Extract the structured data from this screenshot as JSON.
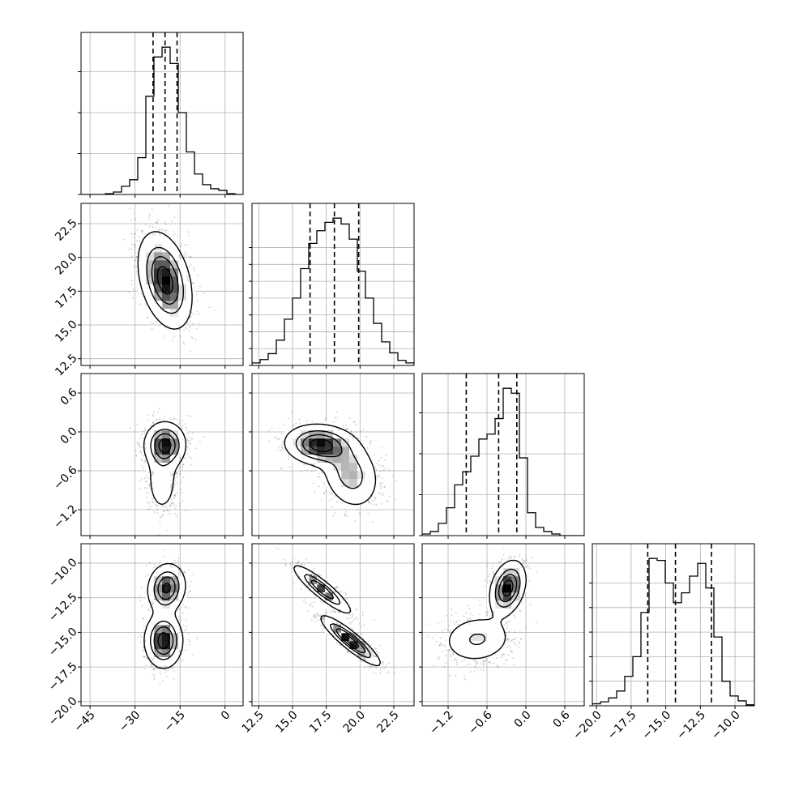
{
  "chart_data": {
    "type": "corner",
    "grid": true,
    "parameters": [
      {
        "range": [
          -48,
          6
        ],
        "ticks": [
          -45,
          -30,
          -15,
          0
        ],
        "tick_labels": [
          "−45",
          "−30",
          "−15",
          "0"
        ],
        "quantiles": [
          -24,
          -20,
          -16
        ],
        "hist_bins": [
          -48,
          -45.3,
          -42.6,
          -39.9,
          -37.2,
          -34.5,
          -31.8,
          -29.1,
          -26.4,
          -23.7,
          -21.0,
          -18.3,
          -15.6,
          -12.9,
          -10.2,
          -7.5,
          -4.8,
          -2.1,
          0.6,
          3.3,
          6.0
        ],
        "hist_counts": [
          0,
          0,
          0,
          1,
          3,
          10,
          18,
          45,
          120,
          168,
          180,
          160,
          100,
          52,
          25,
          12,
          7,
          5,
          1,
          0
        ],
        "y_ticks": [
          0,
          50,
          100,
          150
        ]
      },
      {
        "range": [
          12,
          24
        ],
        "ticks": [
          12.5,
          15.0,
          17.5,
          20.0,
          22.5
        ],
        "tick_labels": [
          "12.5",
          "15.0",
          "17.5",
          "20.0",
          "22.5"
        ],
        "quantiles": [
          16.3,
          18.1,
          19.9
        ],
        "hist_bins": [
          12.0,
          12.6,
          13.2,
          13.8,
          14.4,
          15.0,
          15.6,
          16.2,
          16.8,
          17.4,
          18.0,
          18.6,
          19.2,
          19.8,
          20.4,
          21.0,
          21.6,
          22.2,
          22.8,
          23.4,
          24.0
        ],
        "hist_counts": [
          3,
          7,
          14,
          30,
          55,
          80,
          115,
          145,
          160,
          170,
          175,
          168,
          150,
          112,
          80,
          50,
          28,
          15,
          6,
          3
        ],
        "y_ticks": [
          0,
          20,
          40,
          60,
          80,
          100,
          120,
          140
        ]
      },
      {
        "range": [
          -1.6,
          0.9
        ],
        "ticks": [
          -1.2,
          -0.6,
          0.0,
          0.6
        ],
        "tick_labels": [
          "−1.2",
          "−0.6",
          "0.0",
          "0.6"
        ],
        "quantiles": [
          -0.92,
          -0.42,
          -0.14
        ],
        "hist_bins": [
          -1.6,
          -1.475,
          -1.35,
          -1.225,
          -1.1,
          -0.975,
          -0.85,
          -0.725,
          -0.6,
          -0.475,
          -0.35,
          -0.225,
          -0.1,
          0.025,
          0.15,
          0.275,
          0.4,
          0.525,
          0.65,
          0.775,
          0.9
        ],
        "hist_counts": [
          2,
          5,
          15,
          34,
          62,
          78,
          97,
          118,
          124,
          143,
          180,
          174,
          95,
          28,
          10,
          5,
          2,
          0,
          0,
          0
        ],
        "y_ticks": [
          0,
          50,
          100,
          150
        ]
      },
      {
        "range": [
          -20.3,
          -8.6
        ],
        "ticks": [
          -20.0,
          -17.5,
          -15.0,
          -12.5,
          -10.0
        ],
        "tick_labels": [
          "−20.0",
          "−17.5",
          "−15.0",
          "−12.5",
          "−10.0"
        ],
        "quantiles": [
          -16.3,
          -14.3,
          -11.7
        ],
        "hist_bins": [
          -20.3,
          -19.715,
          -19.13,
          -18.545,
          -17.96,
          -17.375,
          -16.79,
          -16.205,
          -15.62,
          -15.035,
          -14.45,
          -13.865,
          -13.28,
          -12.695,
          -12.11,
          -11.525,
          -10.94,
          -10.355,
          -9.77,
          -9.185,
          -8.6
        ],
        "hist_counts": [
          2,
          4,
          8,
          15,
          30,
          50,
          95,
          150,
          148,
          125,
          105,
          115,
          132,
          145,
          120,
          70,
          25,
          10,
          5,
          1
        ],
        "y_ticks": [
          0,
          25,
          50,
          75,
          100,
          125
        ]
      }
    ],
    "pairs": [
      {
        "x_param": 0,
        "y_param": 1,
        "blobs": [
          {
            "x": -20,
            "y": 18.3,
            "sx": 4.5,
            "sy": 1.8,
            "rho": -0.35,
            "w": 1
          }
        ]
      },
      {
        "x_param": 0,
        "y_param": 2,
        "blobs": [
          {
            "x": -20,
            "y": -0.2,
            "sx": 3.5,
            "sy": 0.18,
            "rho": 0.0,
            "w": 0.7
          },
          {
            "x": -21,
            "y": -0.75,
            "sx": 3.0,
            "sy": 0.3,
            "rho": 0.0,
            "w": 0.3
          }
        ]
      },
      {
        "x_param": 1,
        "y_param": 2,
        "blobs": [
          {
            "x": 17.0,
            "y": -0.2,
            "sx": 1.3,
            "sy": 0.16,
            "rho": -0.1,
            "w": 0.55
          },
          {
            "x": 19.3,
            "y": -0.65,
            "sx": 1.1,
            "sy": 0.28,
            "rho": -0.2,
            "w": 0.45
          }
        ]
      },
      {
        "x_param": 0,
        "y_param": 3,
        "blobs": [
          {
            "x": -19.5,
            "y": -11.8,
            "sx": 3.2,
            "sy": 0.9,
            "rho": 0.1,
            "w": 0.45
          },
          {
            "x": -20.5,
            "y": -15.6,
            "sx": 3.2,
            "sy": 1.0,
            "rho": 0.0,
            "w": 0.55
          }
        ]
      },
      {
        "x_param": 1,
        "y_param": 3,
        "blobs": [
          {
            "x": 17.2,
            "y": -11.9,
            "sx": 1.1,
            "sy": 0.9,
            "rho": -0.9,
            "w": 0.45
          },
          {
            "x": 19.3,
            "y": -15.6,
            "sx": 1.1,
            "sy": 0.9,
            "rho": -0.9,
            "w": 0.55
          }
        ]
      },
      {
        "x_param": 2,
        "y_param": 3,
        "blobs": [
          {
            "x": -0.28,
            "y": -11.8,
            "sx": 0.14,
            "sy": 1.0,
            "rho": 0.3,
            "w": 0.55
          },
          {
            "x": -0.75,
            "y": -15.5,
            "sx": 0.28,
            "sy": 0.9,
            "rho": 0.1,
            "w": 0.45
          }
        ]
      }
    ]
  }
}
